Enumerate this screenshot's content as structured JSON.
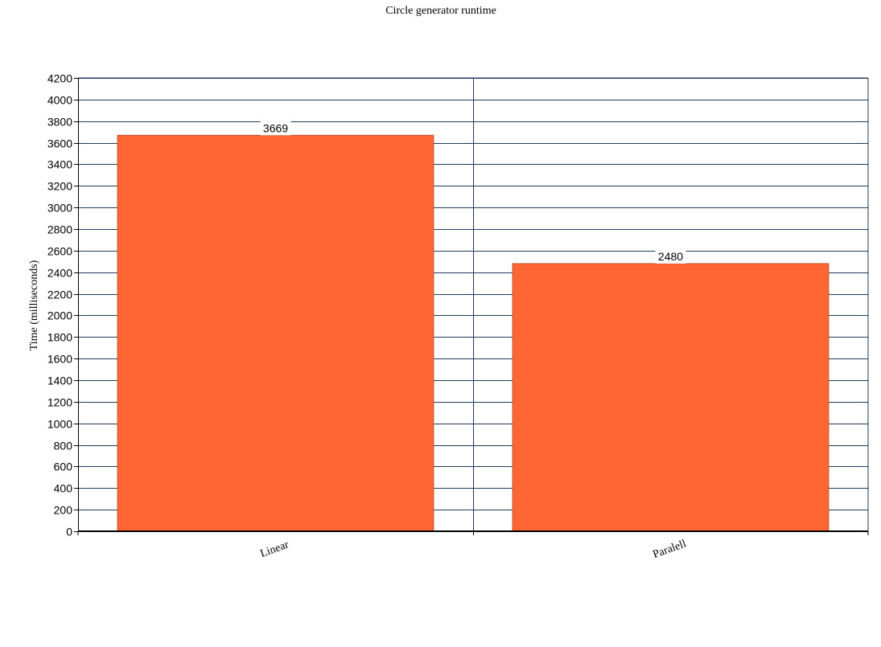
{
  "chart_data": {
    "type": "bar",
    "title": "Circle generator runtime",
    "xlabel": "",
    "ylabel": "Time (milliseconds)",
    "categories": [
      "Linear",
      "Paralell"
    ],
    "values": [
      3669,
      2480
    ],
    "data_labels": [
      "3669",
      "2480"
    ],
    "ylim": [
      0,
      4200
    ],
    "yticks": [
      0,
      200,
      400,
      600,
      800,
      1000,
      1200,
      1400,
      1600,
      1800,
      2000,
      2200,
      2400,
      2600,
      2800,
      3000,
      3200,
      3400,
      3600,
      3800,
      4000,
      4200
    ],
    "grid": true,
    "legend": "none",
    "colors": {
      "bar_fill": "#ff6633",
      "bar_stroke": "#c0502a",
      "grid": "#1f3a5f",
      "axis": "#000000"
    }
  }
}
